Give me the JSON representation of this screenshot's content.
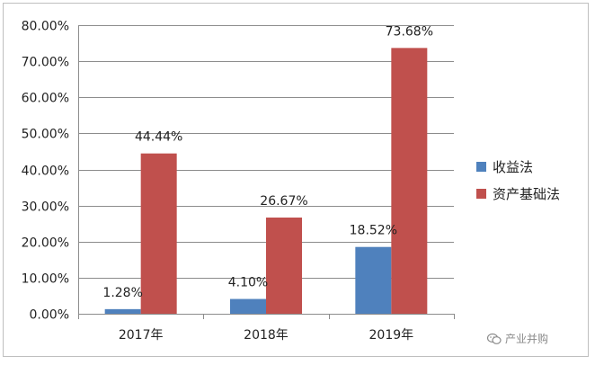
{
  "chart_data": {
    "type": "bar",
    "title": "",
    "xlabel": "",
    "ylabel": "",
    "categories": [
      "2017年",
      "2018年",
      "2019年"
    ],
    "series": [
      {
        "name": "收益法",
        "values": [
          1.28,
          4.1,
          18.52
        ],
        "labels": [
          "1.28%",
          "4.10%",
          "18.52%"
        ],
        "color": "#4f81bd"
      },
      {
        "name": "资产基础法",
        "values": [
          44.44,
          26.67,
          73.68
        ],
        "labels": [
          "44.44%",
          "26.67%",
          "73.68%"
        ],
        "color": "#c0504d"
      }
    ],
    "ylim": [
      0,
      80
    ],
    "yticks": [
      0,
      10,
      20,
      30,
      40,
      50,
      60,
      70,
      80
    ],
    "ytick_labels": [
      "0.00%",
      "10.00%",
      "20.00%",
      "30.00%",
      "40.00%",
      "50.00%",
      "60.00%",
      "70.00%",
      "80.00%"
    ],
    "grid": true,
    "legend_position": "right"
  },
  "watermark": {
    "text": "产业并购",
    "icon": "wechat-icon"
  }
}
